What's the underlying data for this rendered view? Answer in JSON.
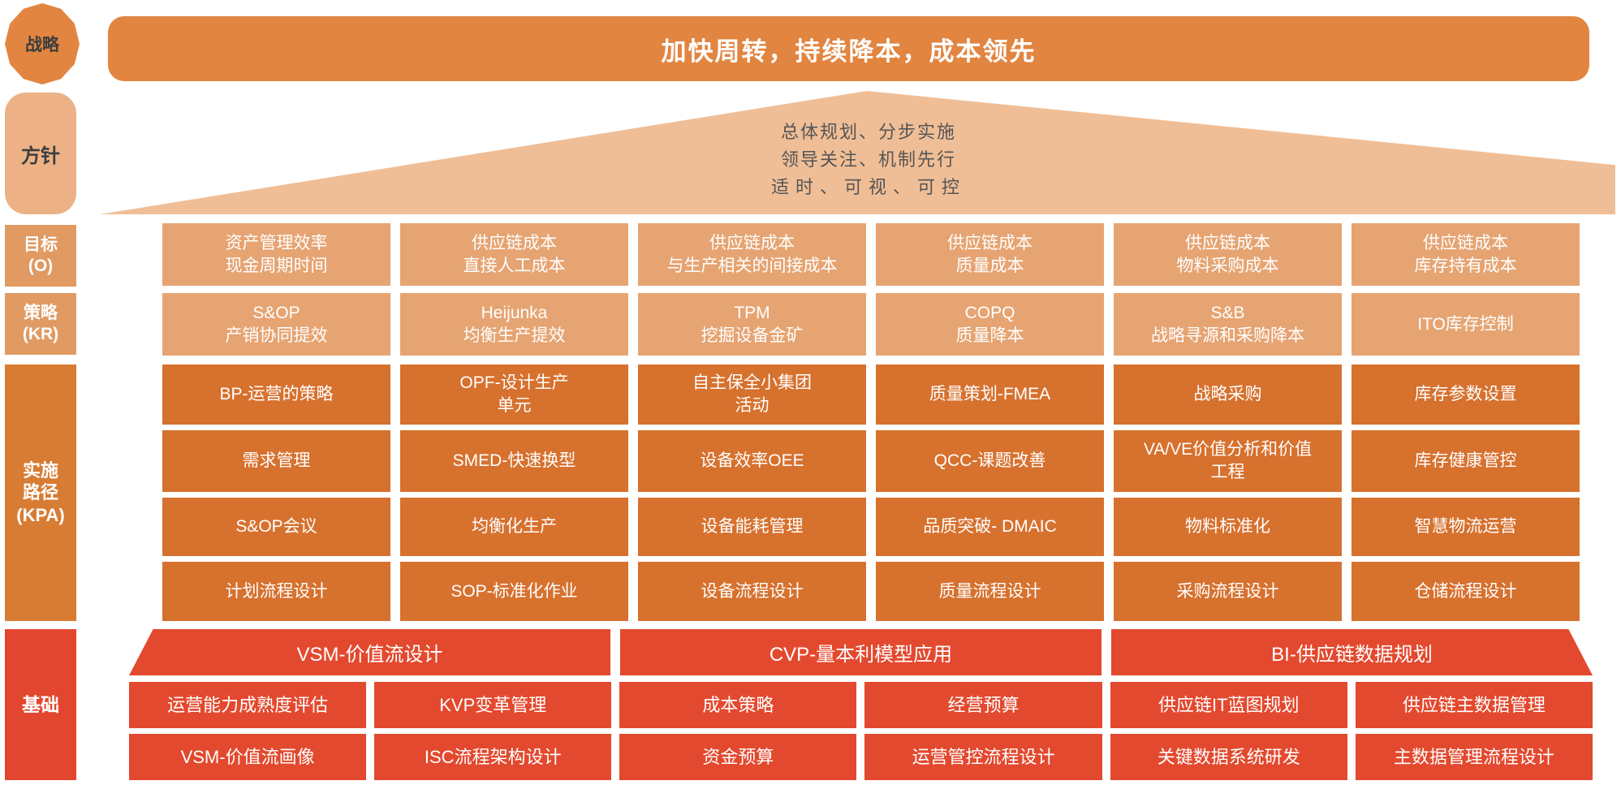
{
  "colors": {
    "banner_orange": "#E28540",
    "policy_peach": "#ECB286",
    "triangle_peach": "#F0BE96",
    "objective_kr_box": "#E6A472",
    "sidebar_mid_orange": "#E09A62",
    "kpa_box": "#D7712E",
    "sidebar_kpa_orange": "#D87C34",
    "foundation_red": "#E3492E",
    "dark_label_text": "#3D3D3D",
    "triangle_text": "#555555"
  },
  "badge": {
    "label": "战略"
  },
  "banner": {
    "title": "加快周转，持续降本，成本领先"
  },
  "policy": {
    "label": "方针",
    "lines": [
      "总体规划、分步实施",
      "领导关注、机制先行",
      "适时、可视、可控"
    ]
  },
  "sidebar": {
    "objective": {
      "lines": [
        "目标",
        "(O)"
      ]
    },
    "kr": {
      "lines": [
        "策略",
        "(KR)"
      ]
    },
    "kpa": {
      "lines": [
        "实施",
        "路径",
        "(KPA)"
      ]
    },
    "foundation": {
      "label": "基础"
    }
  },
  "grid": {
    "objective_row": [
      [
        "资产管理效率",
        "现金周期时间"
      ],
      [
        "供应链成本",
        "直接人工成本"
      ],
      [
        "供应链成本",
        "与生产相关的间接成本"
      ],
      [
        "供应链成本",
        "质量成本"
      ],
      [
        "供应链成本",
        "物料采购成本"
      ],
      [
        "供应链成本",
        "库存持有成本"
      ]
    ],
    "kr_row": [
      [
        "S&OP",
        "产销协同提效"
      ],
      [
        "Heijunka",
        "均衡生产提效"
      ],
      [
        "TPM",
        "挖掘设备金矿"
      ],
      [
        "COPQ",
        "质量降本"
      ],
      [
        "S&B",
        "战略寻源和采购降本"
      ],
      [
        "ITO库存控制"
      ]
    ],
    "kpa_rows": [
      [
        [
          "BP-运营的策略"
        ],
        [
          "OPF-设计生产",
          "单元"
        ],
        [
          "自主保全小集团",
          "活动"
        ],
        [
          "质量策划-FMEA"
        ],
        [
          "战略采购"
        ],
        [
          "库存参数设置"
        ]
      ],
      [
        [
          "需求管理"
        ],
        [
          "SMED-快速换型"
        ],
        [
          "设备效率OEE"
        ],
        [
          "QCC-课题改善"
        ],
        [
          "VA/VE价值分析和价值",
          "工程"
        ],
        [
          "库存健康管控"
        ]
      ],
      [
        [
          "S&OP会议"
        ],
        [
          "均衡化生产"
        ],
        [
          "设备能耗管理"
        ],
        [
          "品质突破- DMAIC"
        ],
        [
          "物料标准化"
        ],
        [
          "智慧物流运营"
        ]
      ],
      [
        [
          "计划流程设计"
        ],
        [
          "SOP-标准化作业"
        ],
        [
          "设备流程设计"
        ],
        [
          "质量流程设计"
        ],
        [
          "采购流程设计"
        ],
        [
          "仓储流程设计"
        ]
      ]
    ]
  },
  "foundation": {
    "groups": [
      "VSM-价值流设计",
      "CVP-量本利模型应用",
      "BI-供应链数据规划"
    ],
    "row1": [
      [
        "运营能力成熟度评估"
      ],
      [
        "KVP变革管理"
      ],
      [
        "成本策略"
      ],
      [
        "经营预算"
      ],
      [
        "供应链IT蓝图规划"
      ],
      [
        "供应链主数据管理"
      ]
    ],
    "row2": [
      [
        "VSM-价值流画像"
      ],
      [
        "ISC流程架构设计"
      ],
      [
        "资金预算"
      ],
      [
        "运营管控流程设计"
      ],
      [
        "关键数据系统研发"
      ],
      [
        "主数据管理流程设计"
      ]
    ]
  }
}
